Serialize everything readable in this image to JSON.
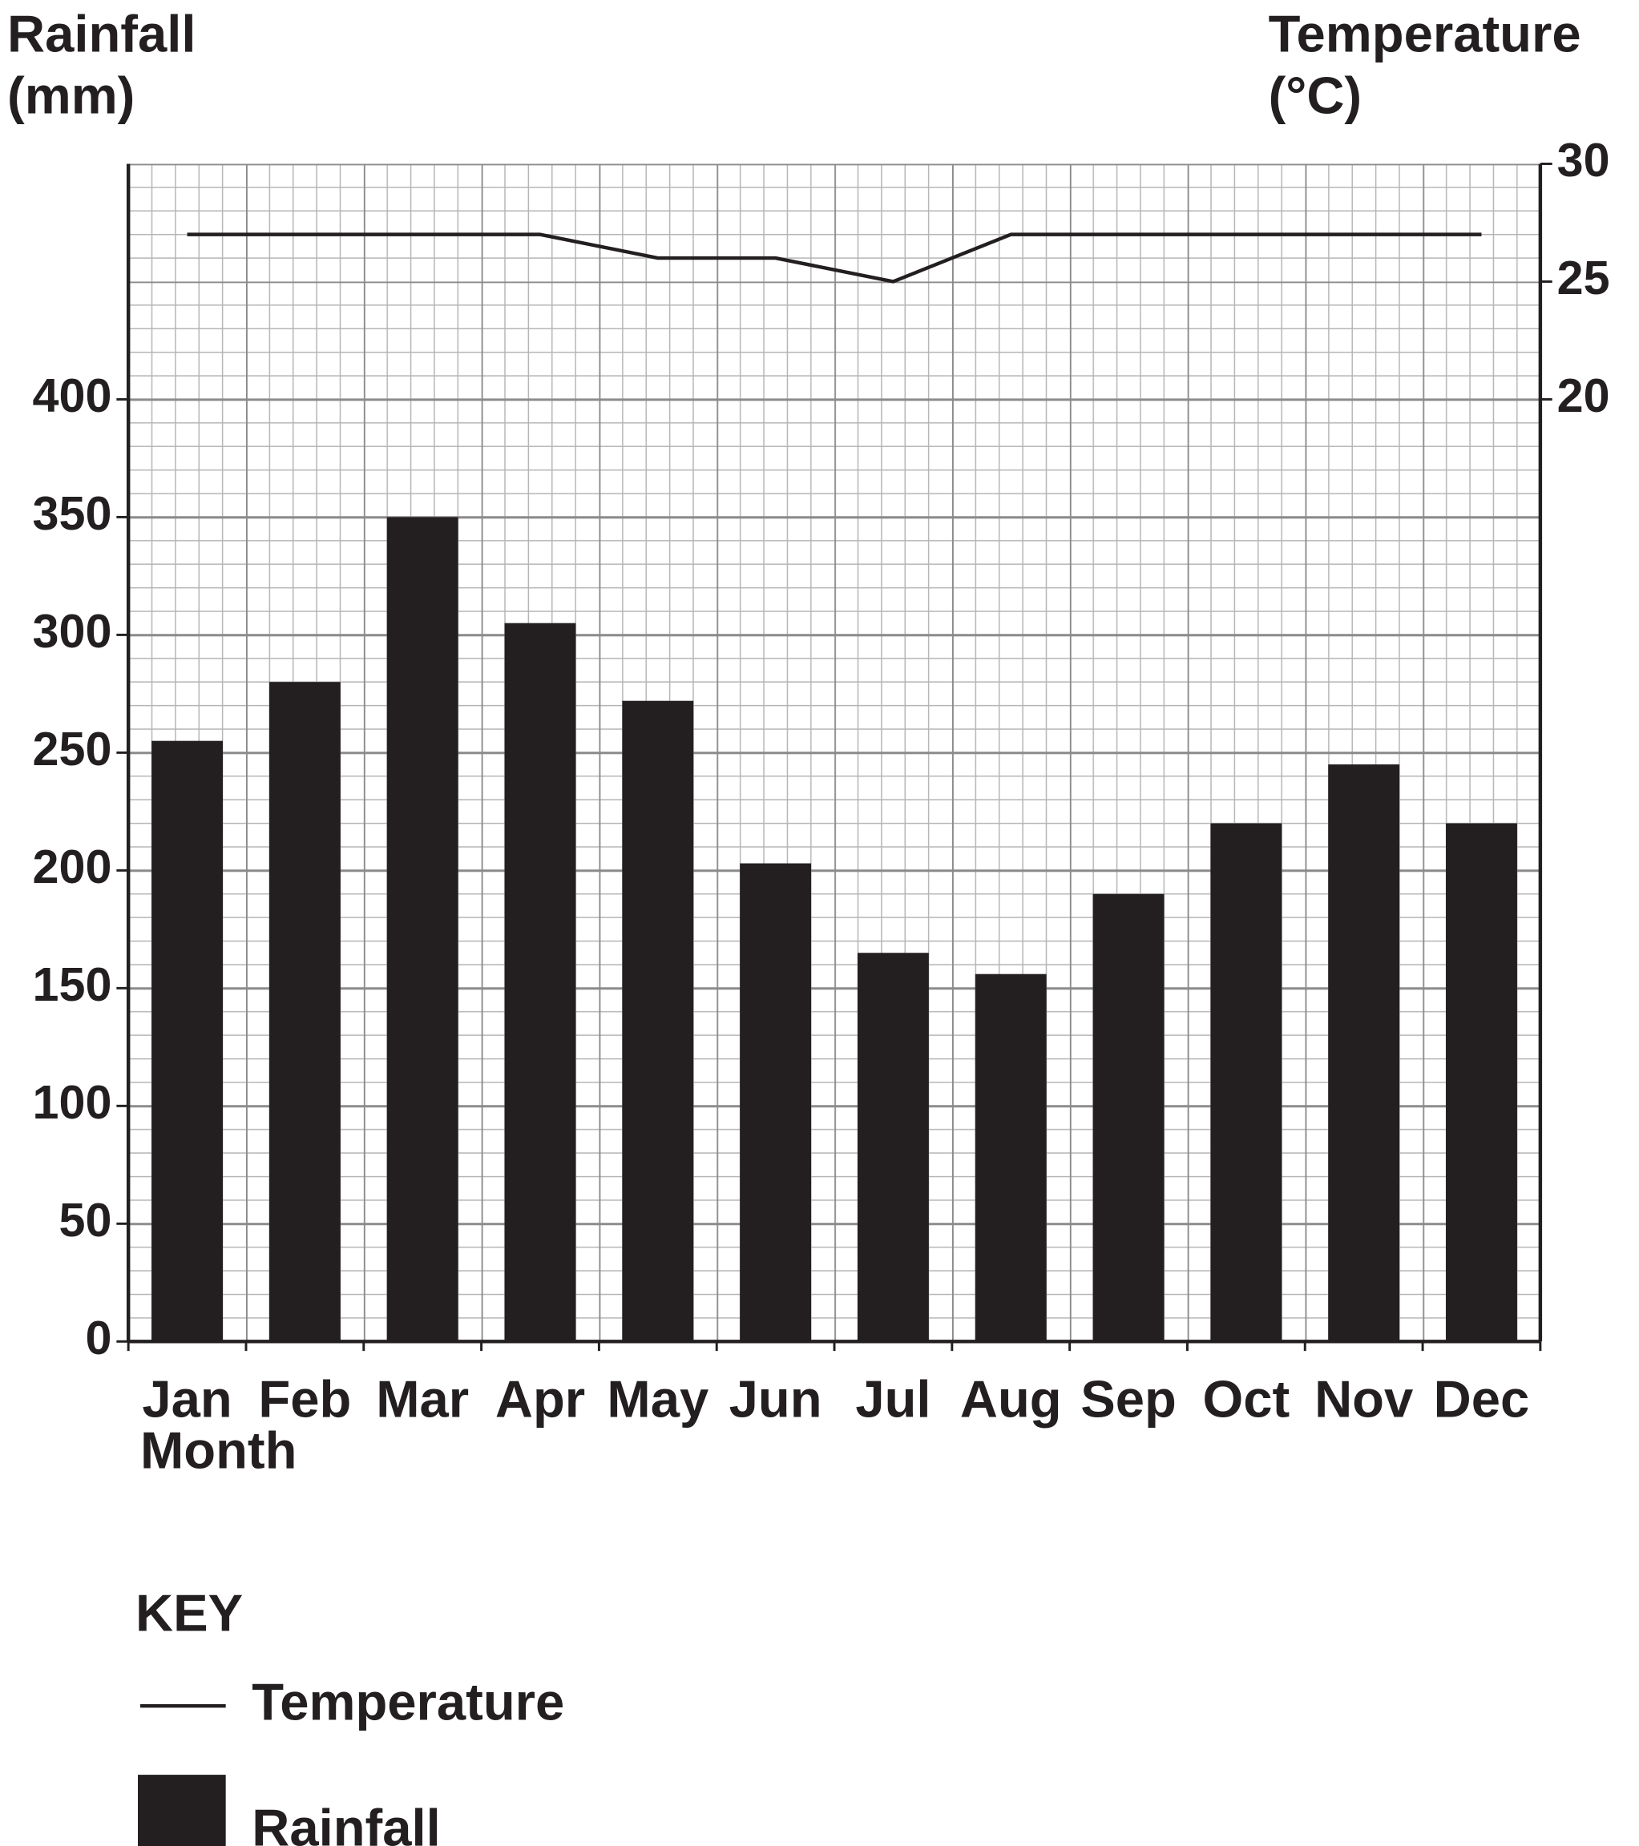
{
  "chart_data": {
    "type": "bar",
    "ylabel": [
      "Rainfall",
      "(mm)"
    ],
    "y2label": [
      "Temperature",
      "(°C)"
    ],
    "xlabel": "Month",
    "legend_title": "KEY",
    "categories": [
      "Jan",
      "Feb",
      "Mar",
      "Apr",
      "May",
      "Jun",
      "Jul",
      "Aug",
      "Sep",
      "Oct",
      "Nov",
      "Dec"
    ],
    "series": [
      {
        "name": "Rainfall",
        "type": "bar",
        "color": "#231f20",
        "values": [
          255,
          280,
          350,
          305,
          272,
          203,
          165,
          156,
          190,
          220,
          245,
          220
        ]
      },
      {
        "name": "Temperature",
        "type": "line",
        "axis": "y2",
        "color": "#231f20",
        "values": [
          27,
          27,
          27,
          27,
          26,
          26,
          25,
          27,
          27,
          27,
          27,
          27
        ]
      }
    ],
    "ylim": [
      0,
      500
    ],
    "yticks": [
      0,
      50,
      100,
      150,
      200,
      250,
      300,
      350,
      400
    ],
    "y2lim": [
      -20,
      30
    ],
    "y2ticks": [
      20,
      25,
      30
    ],
    "grid": true
  }
}
